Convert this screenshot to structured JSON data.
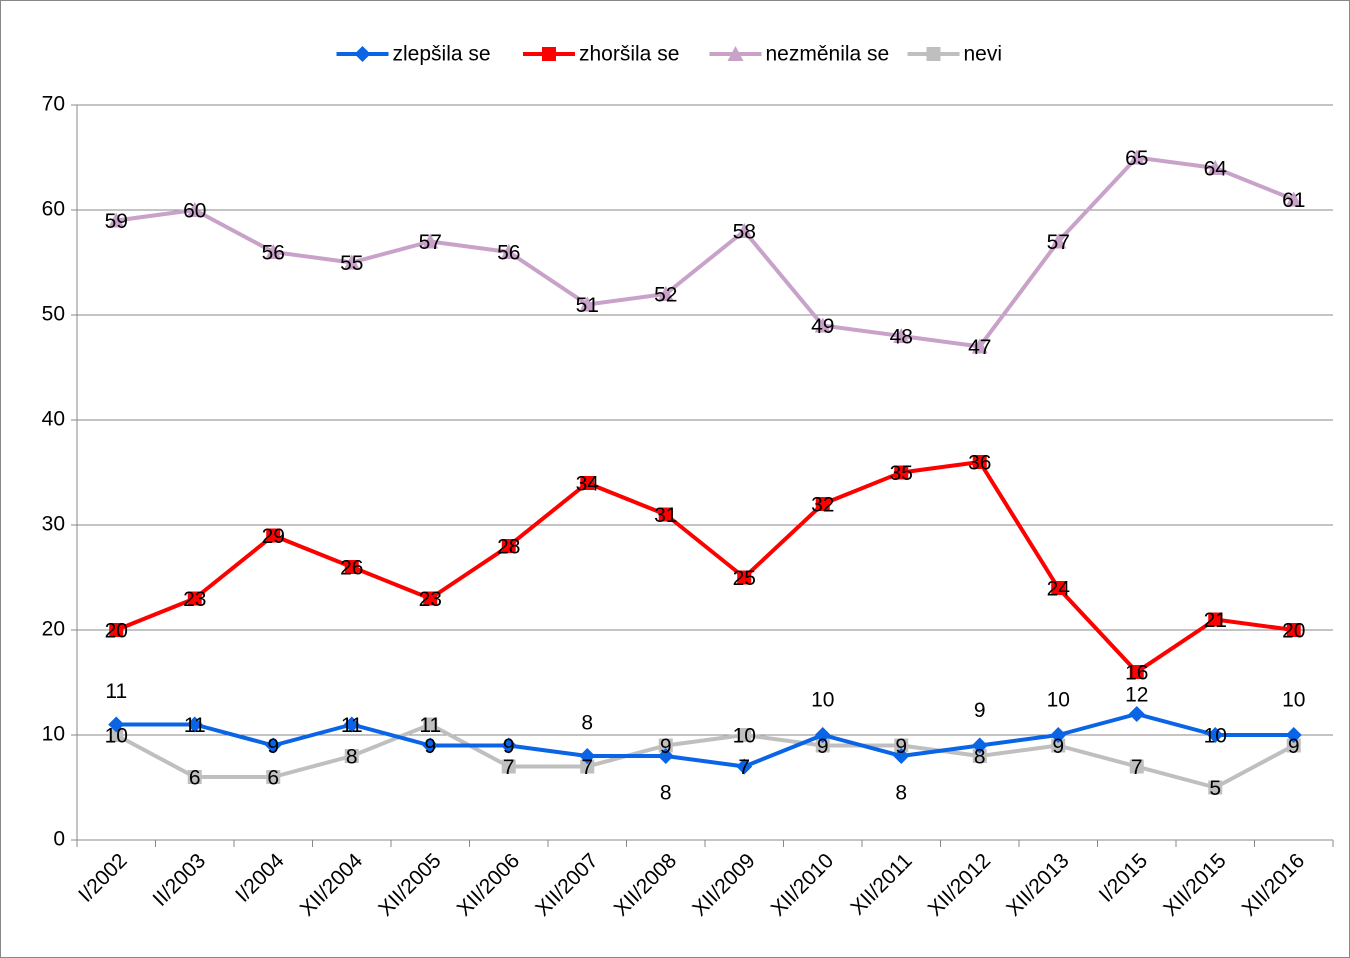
{
  "chart_data": {
    "type": "line",
    "categories": [
      "I/2002",
      "II/2003",
      "I/2004",
      "XII/2004",
      "XII/2005",
      "XII/2006",
      "XII/2007",
      "XII/2008",
      "XII/2009",
      "XII/2010",
      "XII/2011",
      "XII/2012",
      "XII/2013",
      "I/2015",
      "XII/2015",
      "XII/2016"
    ],
    "series": [
      {
        "name": "zlepšila se",
        "color": "#0a64e6",
        "marker": "diamond",
        "values": [
          11,
          11,
          9,
          11,
          9,
          9,
          8,
          8,
          7,
          10,
          8,
          9,
          10,
          12,
          10,
          10
        ]
      },
      {
        "name": "zhoršila se",
        "color": "#ff0000",
        "marker": "square",
        "values": [
          20,
          23,
          29,
          26,
          23,
          28,
          34,
          31,
          25,
          32,
          35,
          36,
          24,
          16,
          21,
          20
        ]
      },
      {
        "name": "nezměnila se",
        "color": "#c8a2c8",
        "marker": "triangle",
        "values": [
          59,
          60,
          56,
          55,
          57,
          56,
          51,
          52,
          58,
          49,
          48,
          47,
          57,
          65,
          64,
          61
        ]
      },
      {
        "name": "nevi",
        "color": "#bfbfbf",
        "marker": "square",
        "values": [
          10,
          6,
          6,
          8,
          11,
          7,
          7,
          9,
          10,
          9,
          9,
          8,
          9,
          7,
          5,
          9
        ]
      }
    ],
    "ylim": [
      0,
      70
    ],
    "yticks": [
      0,
      10,
      20,
      30,
      40,
      50,
      60,
      70
    ],
    "grid": true,
    "legend": "top"
  }
}
